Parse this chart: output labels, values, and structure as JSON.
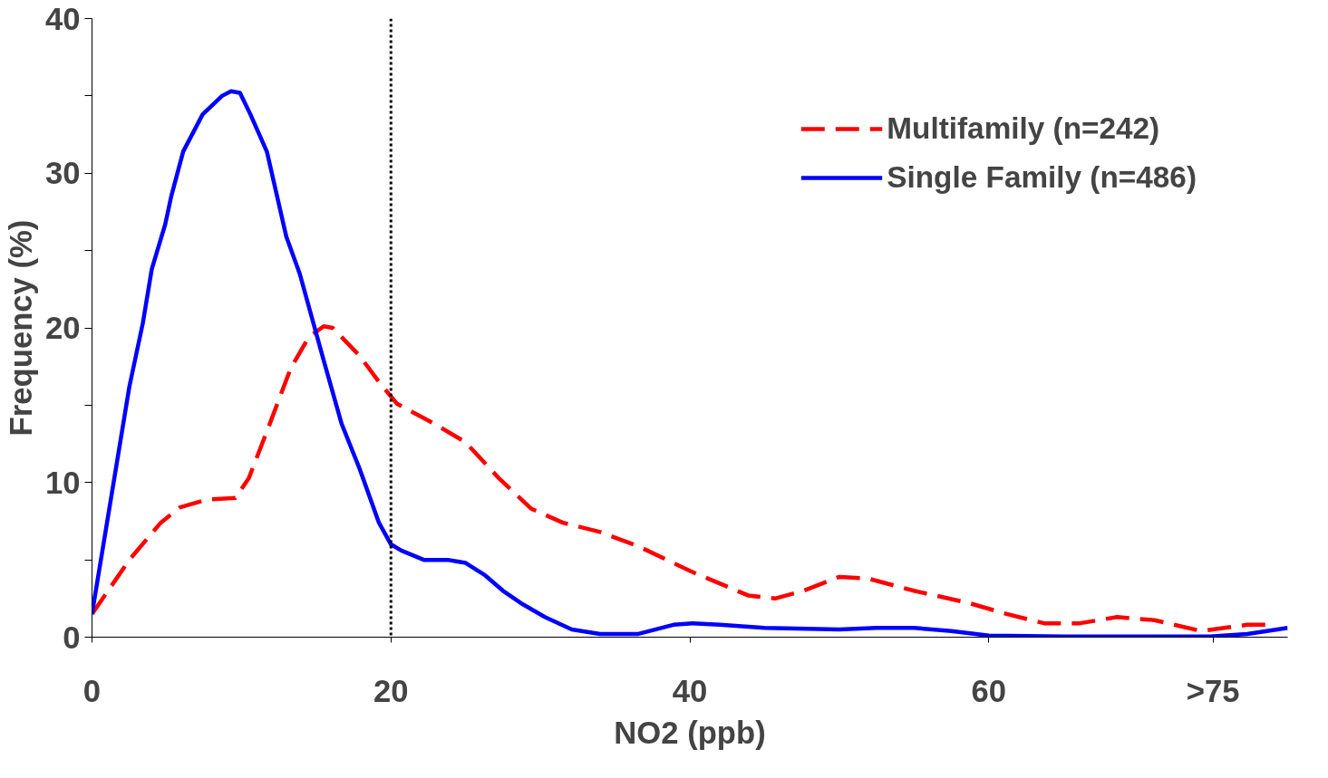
{
  "chart_data": {
    "type": "line",
    "xlabel": "NO2 (ppb)",
    "ylabel": "Frequency (%)",
    "xlim": [
      0,
      80
    ],
    "xticks": [
      0,
      20,
      40,
      60,
      {
        "value": 75,
        "label": ">75"
      }
    ],
    "ylim": [
      0,
      40
    ],
    "yticks": [
      0,
      {
        "value": 5,
        "label": null
      },
      10,
      {
        "value": 15,
        "label": null
      },
      20,
      {
        "value": 25,
        "label": null
      },
      30,
      {
        "value": 35,
        "label": null
      },
      40
    ],
    "grid": false,
    "legend": "top right",
    "marker": "none",
    "ref_lines": [
      {
        "axis": "x",
        "value": 20,
        "color": "#000000",
        "line_style": "dotted"
      }
    ],
    "series": [
      {
        "name": "Multifamily (n=242)",
        "color": "#ff0000",
        "line_style": "dashed",
        "x": [
          0,
          2.5,
          4.6,
          5.9,
          7.7,
          9.6,
          10.5,
          11.7,
          13.3,
          14.5,
          15.5,
          16.1,
          17.9,
          19.2,
          20.4,
          22.9,
          25,
          27.2,
          29.4,
          31.5,
          34,
          36.5,
          40.2,
          43.9,
          45.7,
          47.6,
          50,
          51.9,
          55,
          58.7,
          61.2,
          63.7,
          66.1,
          68.6,
          71.1,
          74.2,
          77.3,
          78.5
        ],
        "values": [
          1.5,
          5,
          7.4,
          8.4,
          8.9,
          9,
          10.3,
          13.3,
          17.4,
          19.4,
          20.1,
          20,
          18.2,
          16.5,
          15.1,
          13.8,
          12.6,
          10.3,
          8.3,
          7.4,
          6.8,
          5.9,
          4.2,
          2.7,
          2.5,
          3,
          3.9,
          3.8,
          3,
          2.2,
          1.5,
          0.9,
          0.9,
          1.3,
          1.1,
          0.4,
          0.8,
          0.8
        ]
      },
      {
        "name": "Single Family (n=486)",
        "color": "#0000ff",
        "line_style": "solid",
        "x": [
          0,
          2.5,
          3.4,
          4,
          4.9,
          5.3,
          6.1,
          7.4,
          8.7,
          9.3,
          9.9,
          10.6,
          11.7,
          13,
          13.9,
          15.5,
          16.7,
          17.9,
          19.2,
          20,
          20.7,
          22.2,
          23.8,
          25,
          26.3,
          27.5,
          28.7,
          30.3,
          32.1,
          34,
          36.5,
          38.9,
          40.2,
          42,
          45,
          50,
          52.5,
          55,
          57.5,
          60,
          65,
          74.8,
          77.3,
          80
        ],
        "values": [
          1.5,
          16.2,
          20.3,
          23.8,
          26.7,
          28.5,
          31.4,
          33.8,
          35,
          35.3,
          35.2,
          33.8,
          31.4,
          25.9,
          23.5,
          17.9,
          13.8,
          10.9,
          7.4,
          6,
          5.6,
          5,
          5,
          4.8,
          4,
          3,
          2.2,
          1.3,
          0.5,
          0.2,
          0.2,
          0.8,
          0.9,
          0.8,
          0.6,
          0.5,
          0.6,
          0.6,
          0.4,
          0.1,
          0.05,
          0.05,
          0.2,
          0.6
        ]
      }
    ]
  }
}
